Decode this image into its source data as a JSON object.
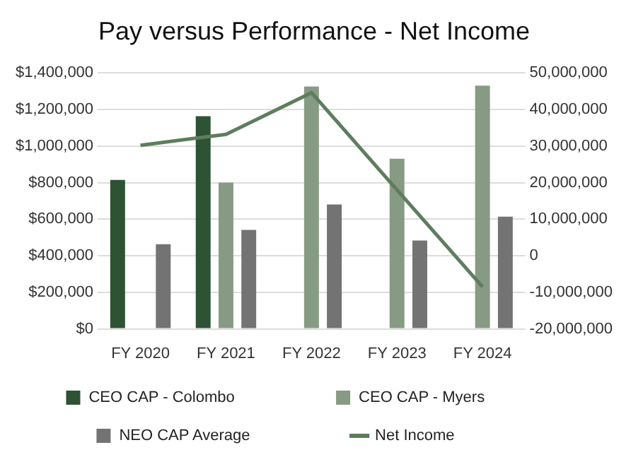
{
  "chart_data": {
    "type": "bar",
    "title": "Pay versus Performance - Net Income",
    "categories": [
      "FY 2020",
      "FY 2021",
      "FY 2022",
      "FY 2023",
      "FY 2024"
    ],
    "series": [
      {
        "name": "CEO CAP - Colombo",
        "color": "#2d5234",
        "values": [
          815000,
          1163000,
          null,
          null,
          null
        ]
      },
      {
        "name": "CEO CAP - Myers",
        "color": "#879a83",
        "values": [
          null,
          800000,
          1325000,
          930000,
          1330000
        ]
      },
      {
        "name": "NEO CAP Average",
        "color": "#737373",
        "values": [
          463000,
          541000,
          680000,
          483000,
          614000
        ]
      },
      {
        "name": "Net Income",
        "type": "line",
        "axis": "y2",
        "color": "#5e7d5e",
        "values": [
          30200000,
          33200000,
          44600000,
          18000000,
          -8500000
        ]
      }
    ],
    "ylim": [
      0,
      1400000
    ],
    "yticks": [
      {
        "value": 0,
        "label": "$0"
      },
      {
        "value": 200000,
        "label": "$200,000"
      },
      {
        "value": 400000,
        "label": "$400,000"
      },
      {
        "value": 600000,
        "label": "$600,000"
      },
      {
        "value": 800000,
        "label": "$800,000"
      },
      {
        "value": 1000000,
        "label": "$1,000,000"
      },
      {
        "value": 1200000,
        "label": "$1,200,000"
      },
      {
        "value": 1400000,
        "label": "$1,400,000"
      }
    ],
    "y2lim": [
      -20000000,
      50000000
    ],
    "y2ticks": [
      {
        "value": -20000000,
        "label": "-20,000,000"
      },
      {
        "value": -10000000,
        "label": "-10,000,000"
      },
      {
        "value": 0,
        "label": "0"
      },
      {
        "value": 10000000,
        "label": "10,000,000"
      },
      {
        "value": 20000000,
        "label": "20,000,000"
      },
      {
        "value": 30000000,
        "label": "30,000,000"
      },
      {
        "value": 40000000,
        "label": "40,000,000"
      },
      {
        "value": 50000000,
        "label": "50,000,000"
      }
    ],
    "grid": "y",
    "legend": "bottom",
    "marker": "none"
  }
}
